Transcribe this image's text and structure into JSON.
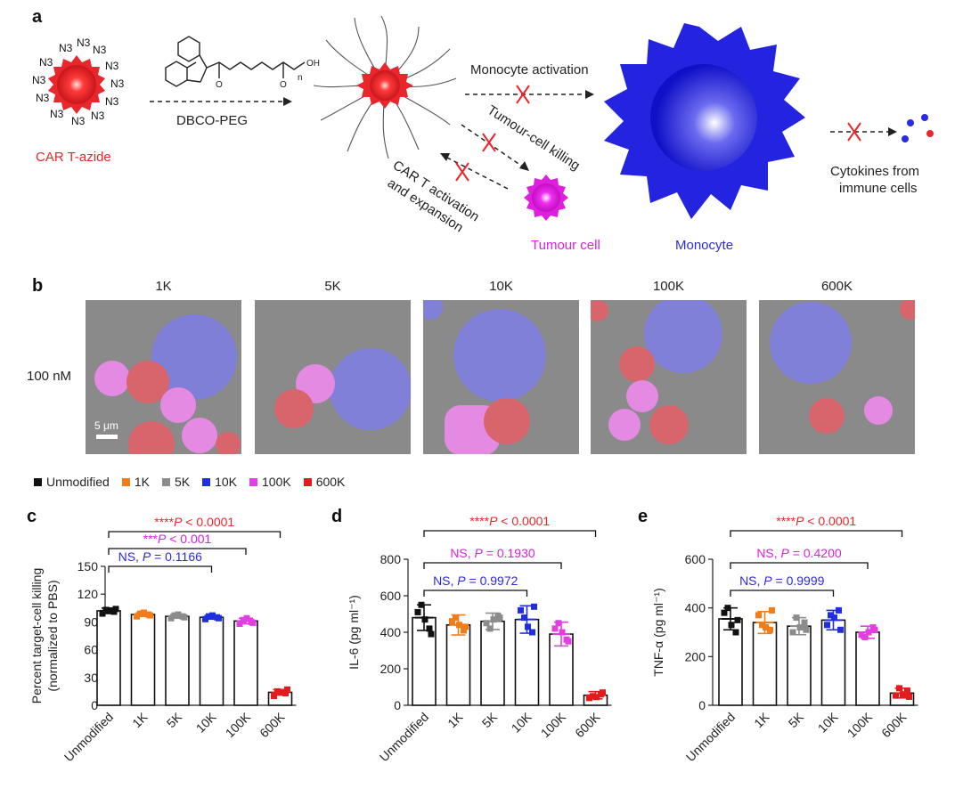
{
  "panel_a": {
    "letter": "a",
    "azide_label": "N3",
    "car_t_azide": "CAR T-azide",
    "dbco_peg": "DBCO-PEG",
    "chem_oh": "OH",
    "chem_n": "n",
    "monocyte_activation": "Monocyte activation",
    "tumour_cell_killing": "Tumour-cell killing",
    "car_t_activation_line1": "CAR T activation",
    "car_t_activation_line2": "and expansion",
    "tumour_cell": "Tumour cell",
    "monocyte": "Monocyte",
    "cytokines_line1": "Cytokines from",
    "cytokines_line2": "immune cells",
    "colors": {
      "car_t": "#e8262b",
      "tumour": "#e01ee0",
      "monocyte": "#2b2be0"
    }
  },
  "panel_b": {
    "letter": "b",
    "columns": [
      "1K",
      "5K",
      "10K",
      "100K",
      "600K"
    ],
    "row_label": "100 nM",
    "scale_bar": "5 μm"
  },
  "legend": [
    {
      "label": "Unmodified",
      "color": "#111111"
    },
    {
      "label": "1K",
      "color": "#f07d1a"
    },
    {
      "label": "5K",
      "color": "#8c8c8c"
    },
    {
      "label": "10K",
      "color": "#1f2fe0"
    },
    {
      "label": "100K",
      "color": "#e040e0"
    },
    {
      "label": "600K",
      "color": "#e21c1c"
    }
  ],
  "chart_data": [
    {
      "panel": "c",
      "type": "bar",
      "ylabel_line1": "Percent target-cell killing",
      "ylabel_line2": "(normalized to PBS)",
      "categories": [
        "Unmodified",
        "1K",
        "5K",
        "10K",
        "100K",
        "600K"
      ],
      "values": [
        102,
        98,
        96,
        95,
        91,
        14
      ],
      "errors": [
        3,
        2,
        2,
        2,
        3,
        3
      ],
      "points": [
        [
          99,
          101,
          103,
          104,
          102
        ],
        [
          96,
          98,
          99,
          97,
          100
        ],
        [
          94,
          96,
          97,
          95,
          98
        ],
        [
          93,
          95,
          96,
          94,
          97
        ],
        [
          88,
          90,
          92,
          89,
          94
        ],
        [
          10,
          13,
          15,
          17,
          14
        ]
      ],
      "ylim": [
        0,
        150
      ],
      "yticks": [
        0,
        30,
        60,
        90,
        120,
        150
      ],
      "brackets": [
        {
          "text_prefix": "NS, ",
          "p": "P",
          "text_suffix": " = 0.1166",
          "color": "#2b2be0",
          "from": 0,
          "to": 3
        },
        {
          "text_prefix": "***",
          "p": "P",
          "text_suffix": " < 0.001",
          "color": "#e01ee0",
          "from": 0,
          "to": 4
        },
        {
          "text_prefix": "****",
          "p": "P",
          "text_suffix": " < 0.0001",
          "color": "#e8262b",
          "from": 0,
          "to": 5
        }
      ]
    },
    {
      "panel": "d",
      "type": "bar",
      "ylabel_line1": "IL-6 (pg ml⁻¹)",
      "ylabel_line2": "",
      "categories": [
        "Unmodified",
        "1K",
        "5K",
        "10K",
        "100K",
        "600K"
      ],
      "values": [
        480,
        440,
        460,
        470,
        390,
        55
      ],
      "errors": [
        70,
        55,
        45,
        75,
        65,
        20
      ],
      "points": [
        [
          510,
          420,
          550,
          390,
          470
        ],
        [
          460,
          410,
          480,
          430,
          440
        ],
        [
          450,
          490,
          420,
          480,
          470
        ],
        [
          520,
          400,
          480,
          540,
          430
        ],
        [
          420,
          360,
          450,
          350,
          400
        ],
        [
          40,
          60,
          50,
          70,
          45
        ]
      ],
      "ylim": [
        0,
        800
      ],
      "yticks": [
        0,
        200,
        400,
        600,
        800
      ],
      "brackets": [
        {
          "text_prefix": "NS, ",
          "p": "P",
          "text_suffix": " = 0.9972",
          "color": "#2b2be0",
          "from": 0,
          "to": 3
        },
        {
          "text_prefix": "NS, ",
          "p": "P",
          "text_suffix": " = 0.1930",
          "color": "#e01ee0",
          "from": 0,
          "to": 4
        },
        {
          "text_prefix": "****",
          "p": "P",
          "text_suffix": " < 0.0001",
          "color": "#e8262b",
          "from": 0,
          "to": 5
        }
      ]
    },
    {
      "panel": "e",
      "type": "bar",
      "ylabel_line1": "TNF-α (pg ml⁻¹)",
      "ylabel_line2": "",
      "categories": [
        "Unmodified",
        "1K",
        "5K",
        "10K",
        "100K",
        "600K"
      ],
      "values": [
        355,
        340,
        325,
        350,
        300,
        50
      ],
      "errors": [
        45,
        45,
        35,
        40,
        25,
        20
      ],
      "points": [
        [
          380,
          300,
          400,
          350,
          330
        ],
        [
          370,
          310,
          330,
          390,
          320
        ],
        [
          300,
          340,
          360,
          310,
          320
        ],
        [
          330,
          390,
          370,
          310,
          360
        ],
        [
          290,
          320,
          280,
          310,
          300
        ],
        [
          40,
          60,
          70,
          35,
          45
        ]
      ],
      "ylim": [
        0,
        600
      ],
      "yticks": [
        0,
        200,
        400,
        600
      ],
      "brackets": [
        {
          "text_prefix": "NS, ",
          "p": "P",
          "text_suffix": " = 0.9999",
          "color": "#2b2be0",
          "from": 0,
          "to": 3
        },
        {
          "text_prefix": "NS, ",
          "p": "P",
          "text_suffix": " = 0.4200",
          "color": "#e01ee0",
          "from": 0,
          "to": 4
        },
        {
          "text_prefix": "****",
          "p": "P",
          "text_suffix": " < 0.0001",
          "color": "#e8262b",
          "from": 0,
          "to": 5
        }
      ]
    }
  ]
}
